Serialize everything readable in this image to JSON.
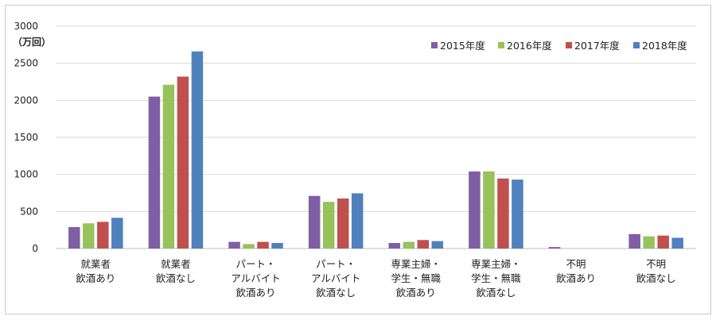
{
  "chart_data": {
    "type": "bar",
    "title": "",
    "unit_label": "（万回）",
    "ylim": [
      0,
      3000
    ],
    "yticks": [
      "0",
      "500",
      "1000",
      "1500",
      "2000",
      "2500",
      "3000"
    ],
    "grid": true,
    "legend_position": "top-right",
    "categories": [
      [
        "就業者",
        "飲酒あり"
      ],
      [
        "就業者",
        "飲酒なし"
      ],
      [
        "パート・",
        "アルバイト",
        "飲酒あり"
      ],
      [
        "パート・",
        "アルバイト",
        "飲酒なし"
      ],
      [
        "専業主婦・",
        "学生・無職",
        "飲酒あり"
      ],
      [
        "専業主婦・",
        "学生・無職",
        "飲酒なし"
      ],
      [
        "不明",
        "飲酒あり"
      ],
      [
        "不明",
        "飲酒なし"
      ]
    ],
    "series": [
      {
        "name": "2015年度",
        "color": "#7f5fa3",
        "values": [
          290,
          2050,
          90,
          710,
          75,
          1040,
          20,
          195
        ]
      },
      {
        "name": "2016年度",
        "color": "#97c25c",
        "values": [
          340,
          2210,
          60,
          630,
          90,
          1040,
          0,
          165
        ]
      },
      {
        "name": "2017年度",
        "color": "#c0504d",
        "values": [
          360,
          2320,
          90,
          675,
          115,
          945,
          0,
          175
        ]
      },
      {
        "name": "2018年度",
        "color": "#4f81bd",
        "values": [
          415,
          2660,
          75,
          745,
          100,
          930,
          0,
          145
        ]
      }
    ]
  }
}
